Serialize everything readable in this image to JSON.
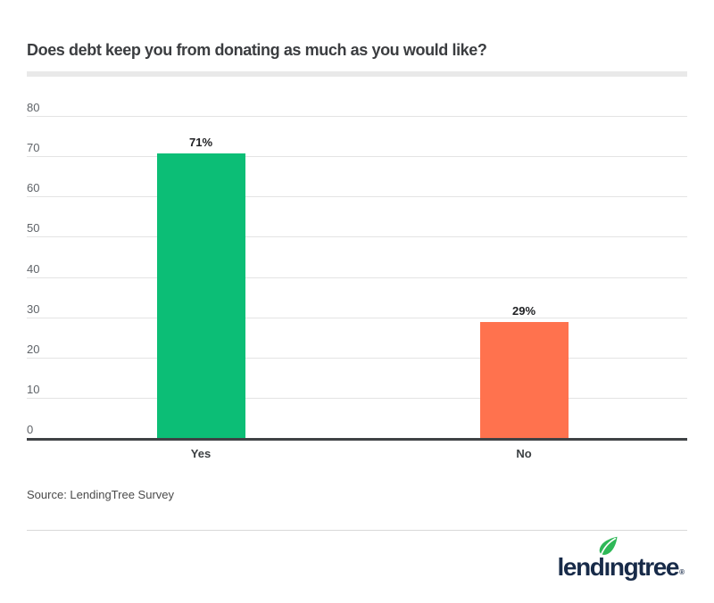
{
  "header": {
    "title": "Does debt keep you from donating as much as you would like?"
  },
  "chart_data": {
    "type": "bar",
    "title": "Does debt keep you from donating as much as you would like?",
    "categories": [
      "Yes",
      "No"
    ],
    "values": [
      71,
      29
    ],
    "data_labels": [
      "71%",
      "29%"
    ],
    "bar_colors": [
      "#0cbe76",
      "#ff724e"
    ],
    "xlabel": "",
    "ylabel": "",
    "ylim": [
      0,
      80
    ],
    "yticks": [
      0,
      10,
      20,
      30,
      40,
      50,
      60,
      70,
      80
    ],
    "grid": "horizontal",
    "legend": "none"
  },
  "footer": {
    "source": "Source: LendingTree Survey",
    "logo": {
      "alt": "lendingtree",
      "text_before_leaf": "lend",
      "dotless_i": "ı",
      "text_after_leaf": "ngtree",
      "registered_mark": "®",
      "leaf_color": "#2eb857",
      "text_color": "#182b49"
    }
  },
  "colors": {
    "bar_yes": "#0cbe76",
    "bar_no": "#ff724e",
    "gridline": "#e4e4e4",
    "axis_line": "#3f4245",
    "title_text": "#3b3d40",
    "tick_text": "#5f6368",
    "value_label_text": "#202124",
    "source_text": "#4a4a4a"
  }
}
